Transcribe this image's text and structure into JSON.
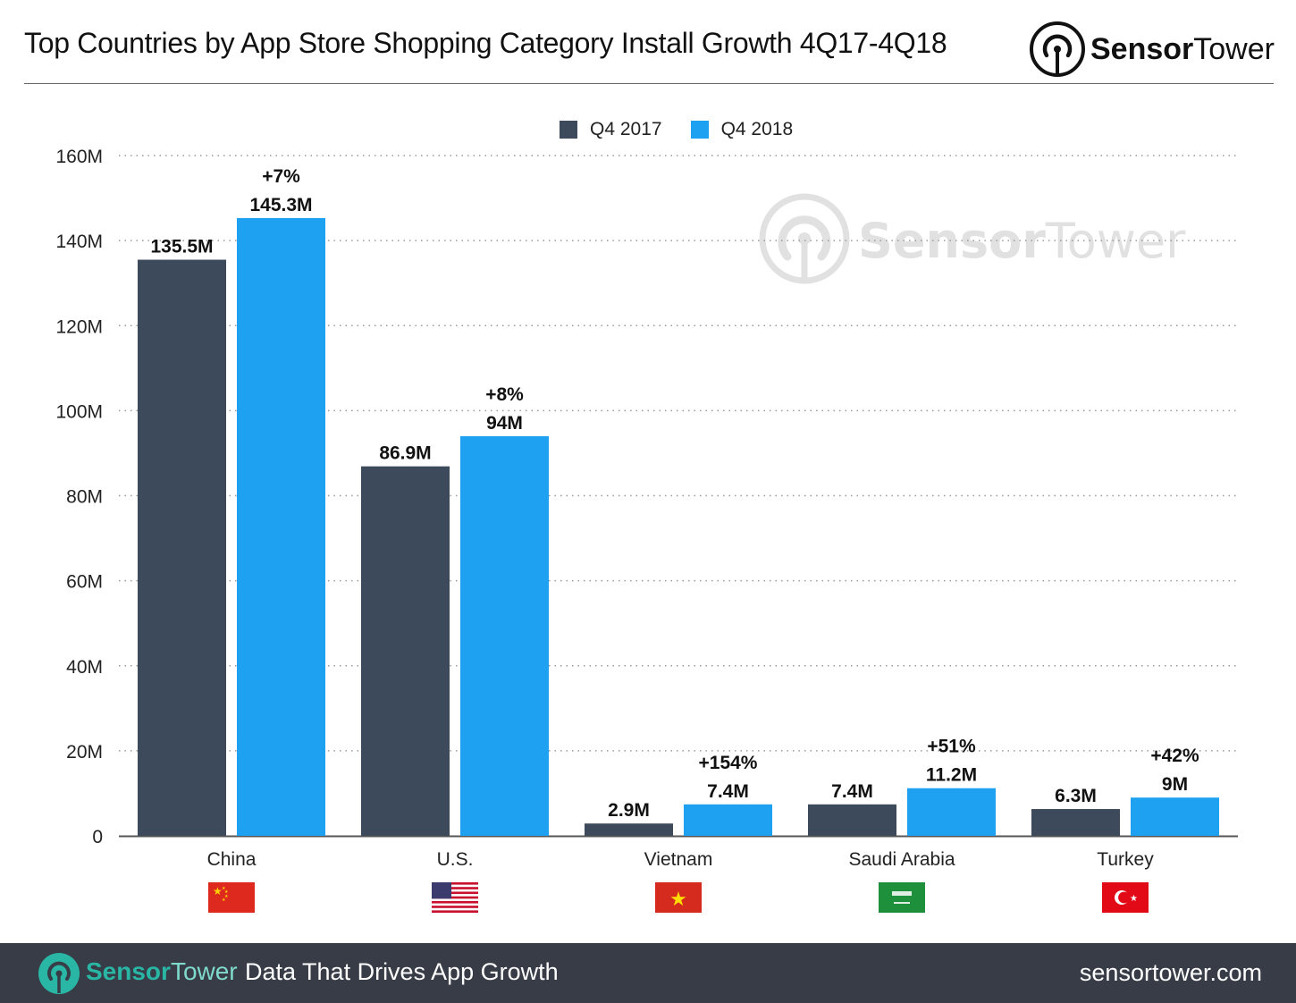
{
  "header": {
    "title": "Top Countries by App Store Shopping Category Install Growth 4Q17-4Q18",
    "logo_bold": "Sensor",
    "logo_regular": "Tower"
  },
  "watermark": {
    "bold": "Sensor",
    "regular": "Tower"
  },
  "colors": {
    "q4_2017": "#3d4a5c",
    "q4_2018": "#1fa1f2",
    "footer_bg": "#373c46",
    "brand_teal": "#29b6a5"
  },
  "chart_data": {
    "type": "bar",
    "title": "Top Countries by App Store Shopping Category Install Growth 4Q17-4Q18",
    "xlabel": "",
    "ylabel": "",
    "categories": [
      "China",
      "U.S.",
      "Vietnam",
      "Saudi Arabia",
      "Turkey"
    ],
    "series": [
      {
        "name": "Q4 2017",
        "values": [
          135.5,
          86.9,
          2.9,
          7.4,
          6.3
        ],
        "labels": [
          "135.5M",
          "86.9M",
          "2.9M",
          "7.4M",
          "6.3M"
        ]
      },
      {
        "name": "Q4 2018",
        "values": [
          145.3,
          94,
          7.4,
          11.2,
          9
        ],
        "labels": [
          "145.3M",
          "94M",
          "7.4M",
          "11.2M",
          "9M"
        ]
      }
    ],
    "growth_labels": [
      "+7%",
      "+8%",
      "+154%",
      "+51%",
      "+42%"
    ],
    "ylim": [
      0,
      160
    ],
    "yticks": [
      0,
      20,
      40,
      60,
      80,
      100,
      120,
      140,
      160
    ],
    "ytick_labels": [
      "0",
      "20M",
      "40M",
      "60M",
      "80M",
      "100M",
      "120M",
      "140M",
      "160M"
    ],
    "grid": true,
    "legend": "top-center",
    "flags": [
      "china-flag",
      "us-flag",
      "vietnam-flag",
      "saudi-arabia-flag",
      "turkey-flag"
    ]
  },
  "footer": {
    "logo_bold": "Sensor",
    "logo_regular": "Tower",
    "tagline": "Data That Drives App Growth",
    "website": "sensortower.com"
  }
}
